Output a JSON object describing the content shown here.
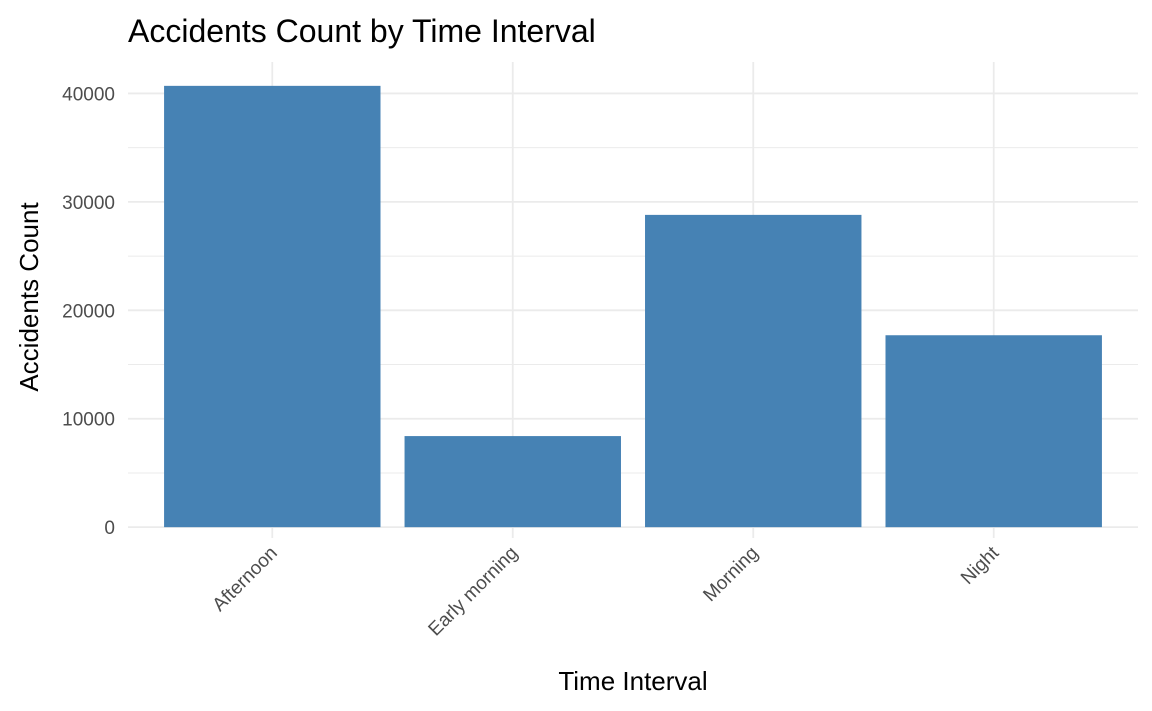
{
  "chart_data": {
    "type": "bar",
    "title": "Accidents Count by Time Interval",
    "xlabel": "Time Interval",
    "ylabel": "Accidents Count",
    "categories": [
      "Afternoon",
      "Early morning",
      "Morning",
      "Night"
    ],
    "values": [
      40700,
      8400,
      28800,
      17700
    ],
    "ylim": [
      -1000,
      42900
    ],
    "yticks": [
      0,
      10000,
      20000,
      30000,
      40000
    ],
    "ytick_labels": [
      "0",
      "10000",
      "20000",
      "30000",
      "40000"
    ],
    "grid": true,
    "legend": "none",
    "bar_color": "#4682B4",
    "grid_color": "#EBEBEB"
  }
}
